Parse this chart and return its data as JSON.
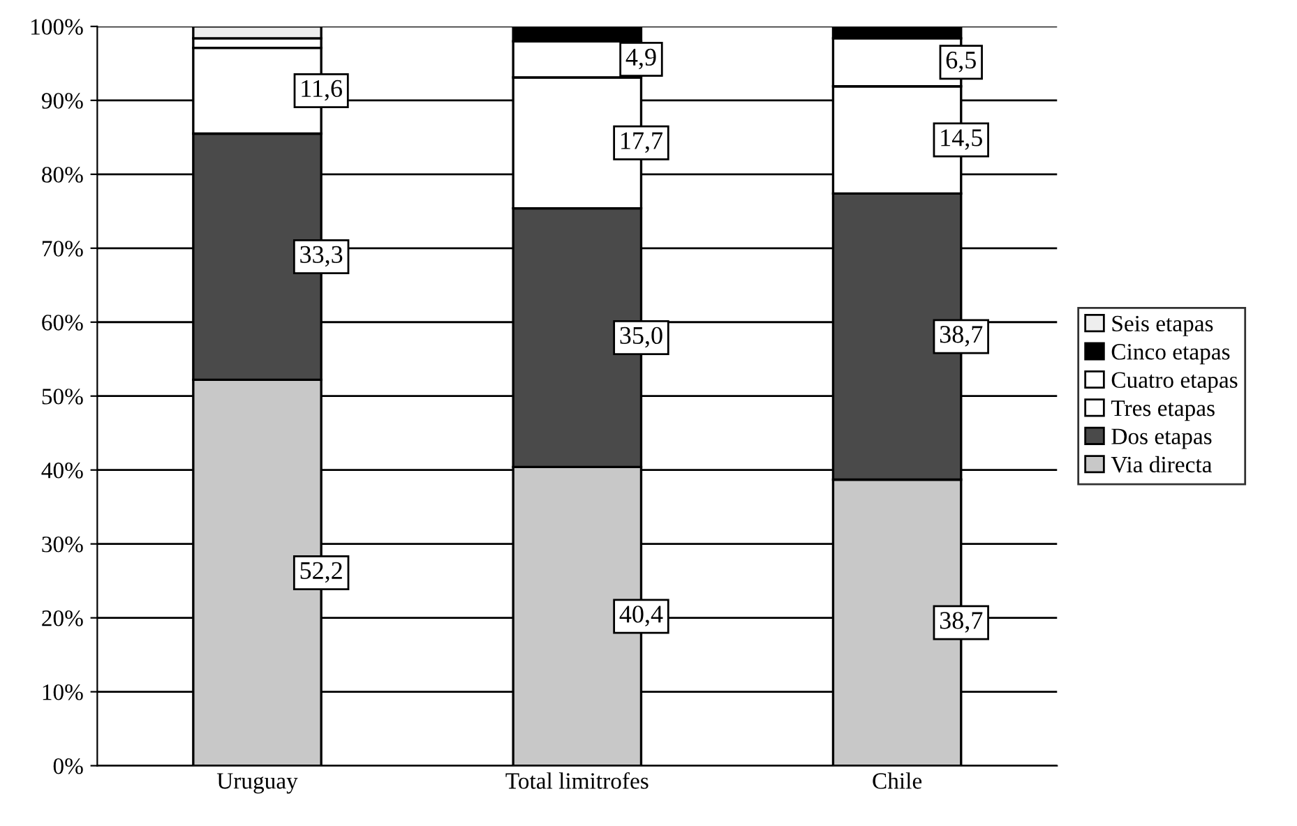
{
  "chart_data": {
    "type": "bar",
    "stacked": true,
    "categories": [
      "Uruguay",
      "Total limitrofes",
      "Chile"
    ],
    "series": [
      {
        "name": "Via directa",
        "color": "#c8c8c8",
        "values": [
          52.2,
          40.4,
          38.7
        ],
        "value_labels": [
          "52,2",
          "40,4",
          "38,7"
        ]
      },
      {
        "name": "Dos etapas",
        "color": "#4a4a4a",
        "values": [
          33.3,
          35.0,
          38.7
        ],
        "value_labels": [
          "33,3",
          "35,0",
          "38,7"
        ]
      },
      {
        "name": "Tres etapas",
        "color": "#ffffff",
        "values": [
          11.6,
          17.7,
          14.5
        ],
        "value_labels": [
          "11,6",
          "17,7",
          "14,5"
        ]
      },
      {
        "name": "Cuatro etapas",
        "color": "#ffffff",
        "values": [
          1.3,
          4.9,
          6.5
        ],
        "value_labels": [
          null,
          "4,9",
          "6,5"
        ]
      },
      {
        "name": "Cinco etapas",
        "color": "#000000",
        "values": [
          null,
          2.0,
          1.6
        ],
        "value_labels": [
          null,
          null,
          null
        ]
      },
      {
        "name": "Seis etapas",
        "color": "#eeeeee",
        "values": [
          1.6,
          null,
          null
        ],
        "value_labels": [
          null,
          null,
          null
        ]
      }
    ],
    "ylim": [
      0,
      100
    ],
    "yticks": [
      {
        "value": 0,
        "label": "0%"
      },
      {
        "value": 10,
        "label": "10%"
      },
      {
        "value": 20,
        "label": "20%"
      },
      {
        "value": 30,
        "label": "30%"
      },
      {
        "value": 40,
        "label": "40%"
      },
      {
        "value": 50,
        "label": "50%"
      },
      {
        "value": 60,
        "label": "60%"
      },
      {
        "value": 70,
        "label": "70%"
      },
      {
        "value": 80,
        "label": "80%"
      },
      {
        "value": 90,
        "label": "90%"
      },
      {
        "value": 100,
        "label": "100%"
      }
    ],
    "grid": "y",
    "legend": "right"
  }
}
